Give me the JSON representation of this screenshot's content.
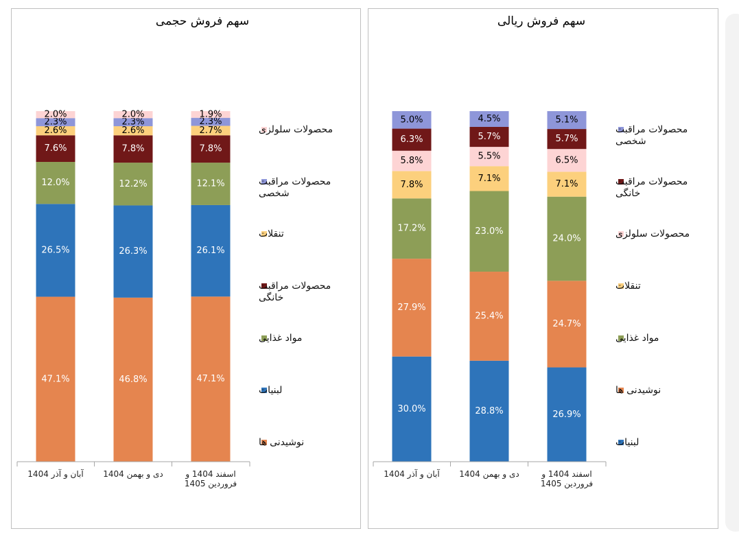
{
  "chart_data": [
    {
      "type": "bar",
      "stacked": true,
      "percent_stacked": true,
      "title": "سهم فروش حجمی",
      "categories": [
        [
          "آبان و آذر 1404"
        ],
        [
          "دی و بهمن 1404"
        ],
        [
          "اسفند 1404 و",
          "فروردین 1405"
        ]
      ],
      "ylim": [
        0,
        100
      ],
      "grid": false,
      "legend_position": "right",
      "series": [
        {
          "name": "نوشیدنی ها",
          "color": "#E5854F",
          "text_color": "#ffffff",
          "values": [
            47.1,
            46.8,
            47.1
          ]
        },
        {
          "name": "لبنیات",
          "color": "#2E74BA",
          "text_color": "#ffffff",
          "values": [
            26.5,
            26.3,
            26.1
          ]
        },
        {
          "name": "مواد غذایی",
          "color": "#8D9E57",
          "text_color": "#ffffff",
          "values": [
            12.0,
            12.2,
            12.1
          ]
        },
        {
          "name": [
            "محصولات مراقبت",
            "خانگی"
          ],
          "color": "#701818",
          "text_color": "#ffffff",
          "values": [
            7.6,
            7.8,
            7.8
          ]
        },
        {
          "name": "تنقلات",
          "color": "#FCD07D",
          "text_color": "#000000",
          "values": [
            2.6,
            2.6,
            2.7
          ]
        },
        {
          "name": [
            "محصولات مراقبت",
            "شخصی"
          ],
          "color": "#8E96D9",
          "text_color": "#000000",
          "values": [
            2.3,
            2.3,
            2.3
          ]
        },
        {
          "name": "محصولات سلولزی",
          "color": "#FDD4D4",
          "text_color": "#000000",
          "values": [
            2.0,
            2.0,
            1.9
          ]
        }
      ]
    },
    {
      "type": "bar",
      "stacked": true,
      "percent_stacked": true,
      "title": "سهم فروش ریالی",
      "categories": [
        [
          "آبان و آذر 1404"
        ],
        [
          "دی و بهمن 1404"
        ],
        [
          "اسفند 1404 و",
          "فروردین 1405"
        ]
      ],
      "ylim": [
        0,
        100
      ],
      "grid": false,
      "legend_position": "right",
      "series": [
        {
          "name": "لبنیات",
          "color": "#2E74BA",
          "text_color": "#ffffff",
          "values": [
            30.0,
            28.8,
            26.9
          ]
        },
        {
          "name": "نوشیدنی ها",
          "color": "#E5854F",
          "text_color": "#ffffff",
          "values": [
            27.9,
            25.4,
            24.7
          ]
        },
        {
          "name": "مواد غذایی",
          "color": "#8D9E57",
          "text_color": "#ffffff",
          "values": [
            17.2,
            23.0,
            24.0
          ]
        },
        {
          "name": "تنقلات",
          "color": "#FCD07D",
          "text_color": "#000000",
          "values": [
            7.8,
            7.1,
            7.1
          ]
        },
        {
          "name": "محصولات سلولزی",
          "color": "#FDD4D4",
          "text_color": "#000000",
          "values": [
            5.8,
            5.5,
            6.5
          ]
        },
        {
          "name": [
            "محصولات مراقبت",
            "خانگی"
          ],
          "color": "#701818",
          "text_color": "#ffffff",
          "values": [
            6.3,
            5.7,
            5.7
          ]
        },
        {
          "name": [
            "محصولات مراقبت",
            "شخصی"
          ],
          "color": "#8E96D9",
          "text_color": "#000000",
          "values": [
            5.0,
            4.5,
            5.1
          ]
        }
      ]
    }
  ]
}
